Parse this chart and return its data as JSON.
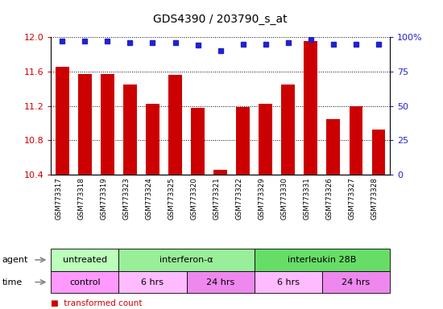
{
  "title": "GDS4390 / 203790_s_at",
  "samples": [
    "GSM773317",
    "GSM773318",
    "GSM773319",
    "GSM773323",
    "GSM773324",
    "GSM773325",
    "GSM773320",
    "GSM773321",
    "GSM773322",
    "GSM773329",
    "GSM773330",
    "GSM773331",
    "GSM773326",
    "GSM773327",
    "GSM773328"
  ],
  "transformed_count": [
    11.65,
    11.57,
    11.57,
    11.45,
    11.22,
    11.56,
    11.18,
    10.46,
    11.19,
    11.22,
    11.45,
    11.95,
    11.05,
    11.2,
    10.92
  ],
  "percentile_rank": [
    97,
    97,
    97,
    96,
    96,
    96,
    94,
    90,
    95,
    95,
    96,
    98,
    95,
    95,
    95
  ],
  "ylim_left": [
    10.4,
    12.0
  ],
  "ylim_right": [
    0,
    100
  ],
  "yticks_left": [
    10.4,
    10.8,
    11.2,
    11.6,
    12.0
  ],
  "yticks_right": [
    0,
    25,
    50,
    75,
    100
  ],
  "bar_color": "#cc0000",
  "dot_color": "#2222cc",
  "agent_groups": [
    {
      "label": "untreated",
      "start": 0,
      "end": 3,
      "color": "#bbffbb"
    },
    {
      "label": "interferon-α",
      "start": 3,
      "end": 9,
      "color": "#99ee99"
    },
    {
      "label": "interleukin 28B",
      "start": 9,
      "end": 15,
      "color": "#66dd66"
    }
  ],
  "time_groups": [
    {
      "label": "control",
      "start": 0,
      "end": 3,
      "color": "#ff99ff"
    },
    {
      "label": "6 hrs",
      "start": 3,
      "end": 6,
      "color": "#ffbbff"
    },
    {
      "label": "24 hrs",
      "start": 6,
      "end": 9,
      "color": "#ee88ee"
    },
    {
      "label": "6 hrs",
      "start": 9,
      "end": 12,
      "color": "#ffbbff"
    },
    {
      "label": "24 hrs",
      "start": 12,
      "end": 15,
      "color": "#ee88ee"
    }
  ],
  "background_color": "#ffffff",
  "tick_label_color_left": "#cc0000",
  "tick_label_color_right": "#2222cc",
  "title_fontsize": 10,
  "bar_width": 0.6
}
